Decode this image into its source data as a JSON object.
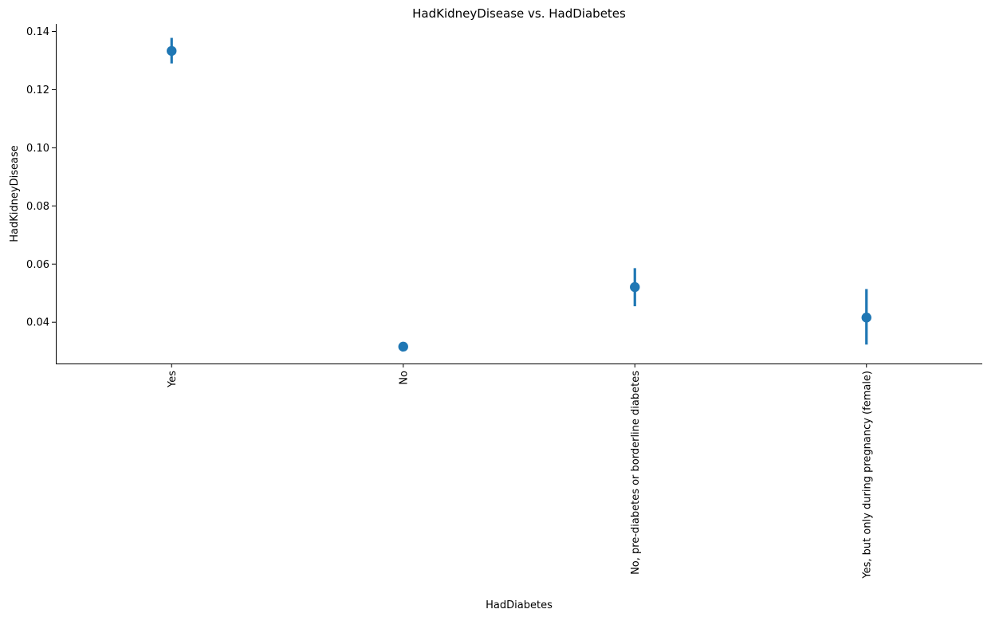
{
  "chart_data": {
    "type": "scatter",
    "title": "HadKidneyDisease vs. HadDiabetes",
    "xlabel": "HadDiabetes",
    "ylabel": "HadKidneyDisease",
    "categories": [
      "Yes",
      "No",
      "No, pre-diabetes or borderline diabetes",
      "Yes, but only during pregnancy (female)"
    ],
    "series": [
      {
        "values": [
          0.1333,
          0.0316,
          0.0521,
          0.0416
        ],
        "ci_low": [
          0.129,
          0.0307,
          0.0455,
          0.0323
        ],
        "ci_high": [
          0.1378,
          0.0325,
          0.0586,
          0.0514
        ]
      }
    ],
    "yticks": [
      "0.04",
      "0.06",
      "0.08",
      "0.10",
      "0.12",
      "0.14"
    ],
    "ylim": [
      0.0258,
      0.1426
    ],
    "grid": false,
    "legend": "none",
    "colors": {
      "marker": "#1f77b4"
    }
  }
}
